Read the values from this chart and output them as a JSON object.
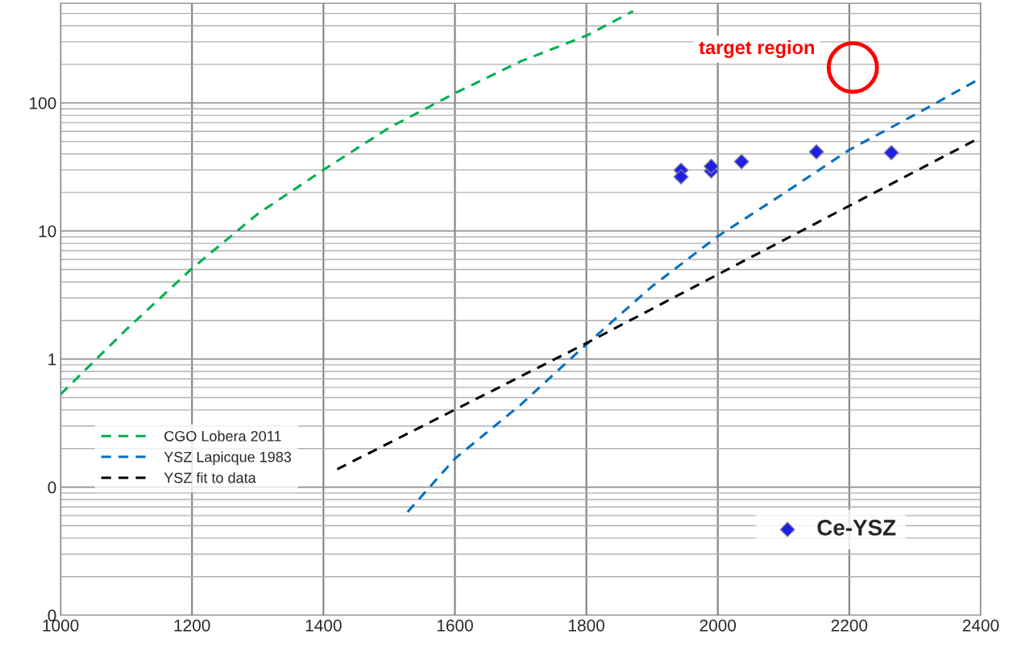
{
  "chart_data": {
    "type": "line",
    "xlim": [
      1000,
      2400
    ],
    "xticks": [
      1000,
      1200,
      1400,
      1600,
      1800,
      2000,
      2200,
      2400
    ],
    "ylim": [
      0.01,
      600
    ],
    "yticks": [
      {
        "value": 0.01,
        "label": "0"
      },
      {
        "value": 0.1,
        "label": "0"
      },
      1,
      10,
      100
    ],
    "log": "y",
    "grid": true,
    "legend": "bottom left",
    "line_style": "dashed",
    "series": [
      {
        "name": "CGO Lobera 2011",
        "color": "#00b050",
        "x": [
          1000,
          1100,
          1200,
          1300,
          1400,
          1500,
          1600,
          1700,
          1800,
          1871
        ],
        "values": [
          0.53,
          1.7,
          5.1,
          13.6,
          30,
          64,
          119,
          211,
          335,
          520
        ]
      },
      {
        "name": "YSZ Lapicque 1983",
        "color": "#0070c0",
        "x": [
          1528,
          1600,
          1700,
          1800,
          1900,
          2000,
          2100,
          2200,
          2300,
          2400
        ],
        "values": [
          0.064,
          0.167,
          0.44,
          1.3,
          3.7,
          9.1,
          19.6,
          43,
          81,
          156
        ]
      },
      {
        "name": "YSZ fit to data",
        "color": "#000000",
        "x": [
          1421,
          1800,
          2400
        ],
        "values": [
          0.138,
          1.33,
          54
        ]
      },
      {
        "name": "Ce-YSZ",
        "type": "scatter",
        "marker": "diamond",
        "color": "#1f1fe6",
        "x": [
          1944,
          1944,
          1990,
          1990,
          2036,
          2150,
          2264
        ],
        "values": [
          26.5,
          29.8,
          32,
          29.4,
          34.8,
          41.5,
          40.9
        ]
      }
    ],
    "annotations": [
      "target region"
    ]
  }
}
